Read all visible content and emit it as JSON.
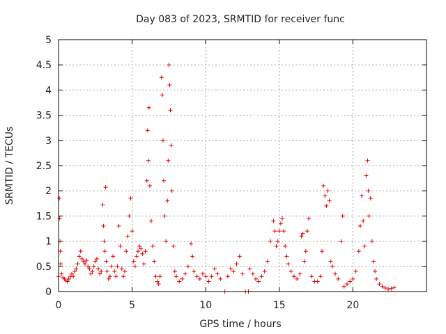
{
  "chart_data": {
    "type": "scatter",
    "title": "Day 083 of 2023, SRMTID for receiver func",
    "xlabel": "GPS time / hours",
    "ylabel": "SRMTID / TECUs",
    "xlim": [
      0,
      25
    ],
    "ylim": [
      0,
      5
    ],
    "grid": true,
    "marker": "+",
    "color": "#e00000",
    "x_ticks": [
      0,
      5,
      10,
      15,
      20
    ],
    "x_tick_labels": [
      "0",
      "5",
      "10",
      "15",
      "20"
    ],
    "y_ticks": [
      0,
      0.5,
      1,
      1.5,
      2,
      2.5,
      3,
      3.5,
      4,
      4.5,
      5
    ],
    "y_tick_labels": [
      "0",
      "0.5",
      "1",
      "1.5",
      "2",
      "2.5",
      "3",
      "3.5",
      "4",
      "4.5",
      "5"
    ],
    "points": [
      [
        0.0,
        0.3
      ],
      [
        0.05,
        1.85
      ],
      [
        0.08,
        1.45
      ],
      [
        0.1,
        1.0
      ],
      [
        0.12,
        0.8
      ],
      [
        0.15,
        0.55
      ],
      [
        0.2,
        0.35
      ],
      [
        0.3,
        0.28
      ],
      [
        0.4,
        0.25
      ],
      [
        0.5,
        0.22
      ],
      [
        0.6,
        0.2
      ],
      [
        0.7,
        0.25
      ],
      [
        0.8,
        0.3
      ],
      [
        0.9,
        0.35
      ],
      [
        1.0,
        0.3
      ],
      [
        1.1,
        0.4
      ],
      [
        1.2,
        0.45
      ],
      [
        1.3,
        0.55
      ],
      [
        1.4,
        0.7
      ],
      [
        1.5,
        0.8
      ],
      [
        1.6,
        0.65
      ],
      [
        1.7,
        0.6
      ],
      [
        1.8,
        0.55
      ],
      [
        1.9,
        0.62
      ],
      [
        2.0,
        0.5
      ],
      [
        2.1,
        0.45
      ],
      [
        2.2,
        0.35
      ],
      [
        2.3,
        0.4
      ],
      [
        2.4,
        0.5
      ],
      [
        2.5,
        0.6
      ],
      [
        2.6,
        0.65
      ],
      [
        2.7,
        0.45
      ],
      [
        2.8,
        0.35
      ],
      [
        2.9,
        0.4
      ],
      [
        3.0,
        1.72
      ],
      [
        3.05,
        1.3
      ],
      [
        3.1,
        1.0
      ],
      [
        3.15,
        0.8
      ],
      [
        3.2,
        2.07
      ],
      [
        3.25,
        0.6
      ],
      [
        3.3,
        0.4
      ],
      [
        3.4,
        0.25
      ],
      [
        3.5,
        0.3
      ],
      [
        3.6,
        0.5
      ],
      [
        3.7,
        0.7
      ],
      [
        3.8,
        0.4
      ],
      [
        3.9,
        0.3
      ],
      [
        4.0,
        0.5
      ],
      [
        4.1,
        1.3
      ],
      [
        4.2,
        0.9
      ],
      [
        4.3,
        0.45
      ],
      [
        4.4,
        0.3
      ],
      [
        4.5,
        0.4
      ],
      [
        4.6,
        0.8
      ],
      [
        4.7,
        1.1
      ],
      [
        4.8,
        1.5
      ],
      [
        4.9,
        1.85
      ],
      [
        5.0,
        1.2
      ],
      [
        5.1,
        0.6
      ],
      [
        5.2,
        0.5
      ],
      [
        5.3,
        0.7
      ],
      [
        5.4,
        0.8
      ],
      [
        5.5,
        0.9
      ],
      [
        5.6,
        0.85
      ],
      [
        5.7,
        0.75
      ],
      [
        5.8,
        0.55
      ],
      [
        5.9,
        0.8
      ],
      [
        6.0,
        2.2
      ],
      [
        6.05,
        3.2
      ],
      [
        6.1,
        2.6
      ],
      [
        6.15,
        3.65
      ],
      [
        6.2,
        2.1
      ],
      [
        6.3,
        1.4
      ],
      [
        6.4,
        0.9
      ],
      [
        6.5,
        0.6
      ],
      [
        6.6,
        0.3
      ],
      [
        6.7,
        0.2
      ],
      [
        6.8,
        0.15
      ],
      [
        6.9,
        0.3
      ],
      [
        7.0,
        4.25
      ],
      [
        7.05,
        3.9
      ],
      [
        7.1,
        3.0
      ],
      [
        7.15,
        2.2
      ],
      [
        7.2,
        1.5
      ],
      [
        7.3,
        1.0
      ],
      [
        7.4,
        1.8
      ],
      [
        7.45,
        2.6
      ],
      [
        7.5,
        4.5
      ],
      [
        7.55,
        4.1
      ],
      [
        7.6,
        3.6
      ],
      [
        7.65,
        2.9
      ],
      [
        7.7,
        2.0
      ],
      [
        7.8,
        0.9
      ],
      [
        7.9,
        0.4
      ],
      [
        8.0,
        0.3
      ],
      [
        8.2,
        0.2
      ],
      [
        8.4,
        0.25
      ],
      [
        8.6,
        0.35
      ],
      [
        8.8,
        0.5
      ],
      [
        9.0,
        0.95
      ],
      [
        9.1,
        0.7
      ],
      [
        9.2,
        0.4
      ],
      [
        9.4,
        0.3
      ],
      [
        9.6,
        0.25
      ],
      [
        9.8,
        0.35
      ],
      [
        10.0,
        0.3
      ],
      [
        10.2,
        0.2
      ],
      [
        10.4,
        0.3
      ],
      [
        10.6,
        0.45
      ],
      [
        10.8,
        0.35
      ],
      [
        11.0,
        0.25
      ],
      [
        11.3,
        0.0
      ],
      [
        11.5,
        0.3
      ],
      [
        11.7,
        0.45
      ],
      [
        11.9,
        0.4
      ],
      [
        12.1,
        0.55
      ],
      [
        12.3,
        0.7
      ],
      [
        12.5,
        0.35
      ],
      [
        12.7,
        0.0
      ],
      [
        12.9,
        0.0
      ],
      [
        13.0,
        0.45
      ],
      [
        13.2,
        0.35
      ],
      [
        13.4,
        0.25
      ],
      [
        13.6,
        0.2
      ],
      [
        13.8,
        0.3
      ],
      [
        14.0,
        0.4
      ],
      [
        14.2,
        0.6
      ],
      [
        14.4,
        1.0
      ],
      [
        14.6,
        1.4
      ],
      [
        14.7,
        1.2
      ],
      [
        14.8,
        0.9
      ],
      [
        14.9,
        1.0
      ],
      [
        15.0,
        1.2
      ],
      [
        15.1,
        1.35
      ],
      [
        15.2,
        1.45
      ],
      [
        15.3,
        1.2
      ],
      [
        15.4,
        0.9
      ],
      [
        15.5,
        0.7
      ],
      [
        15.6,
        0.55
      ],
      [
        15.8,
        0.4
      ],
      [
        16.0,
        0.3
      ],
      [
        16.2,
        0.25
      ],
      [
        16.4,
        0.35
      ],
      [
        16.5,
        1.1
      ],
      [
        16.6,
        1.15
      ],
      [
        16.7,
        0.6
      ],
      [
        16.8,
        0.8
      ],
      [
        16.9,
        1.2
      ],
      [
        17.0,
        1.45
      ],
      [
        17.2,
        0.3
      ],
      [
        17.4,
        0.2
      ],
      [
        17.6,
        0.2
      ],
      [
        17.8,
        0.3
      ],
      [
        17.9,
        0.8
      ],
      [
        18.0,
        2.1
      ],
      [
        18.1,
        1.9
      ],
      [
        18.2,
        1.7
      ],
      [
        18.3,
        2.0
      ],
      [
        18.4,
        1.8
      ],
      [
        18.5,
        0.6
      ],
      [
        18.6,
        0.5
      ],
      [
        18.8,
        0.35
      ],
      [
        19.0,
        0.25
      ],
      [
        19.2,
        1.0
      ],
      [
        19.3,
        1.5
      ],
      [
        19.4,
        0.1
      ],
      [
        19.6,
        0.15
      ],
      [
        19.8,
        0.2
      ],
      [
        20.0,
        0.25
      ],
      [
        20.2,
        0.4
      ],
      [
        20.4,
        0.8
      ],
      [
        20.5,
        1.3
      ],
      [
        20.6,
        1.9
      ],
      [
        20.7,
        1.4
      ],
      [
        20.8,
        0.9
      ],
      [
        20.9,
        2.3
      ],
      [
        21.0,
        2.6
      ],
      [
        21.05,
        2.0
      ],
      [
        21.1,
        1.5
      ],
      [
        21.2,
        1.85
      ],
      [
        21.3,
        1.0
      ],
      [
        21.4,
        0.6
      ],
      [
        21.5,
        0.4
      ],
      [
        21.6,
        0.25
      ],
      [
        21.8,
        0.15
      ],
      [
        22.0,
        0.1
      ],
      [
        22.2,
        0.07
      ],
      [
        22.4,
        0.05
      ],
      [
        22.6,
        0.06
      ],
      [
        22.8,
        0.08
      ]
    ]
  }
}
